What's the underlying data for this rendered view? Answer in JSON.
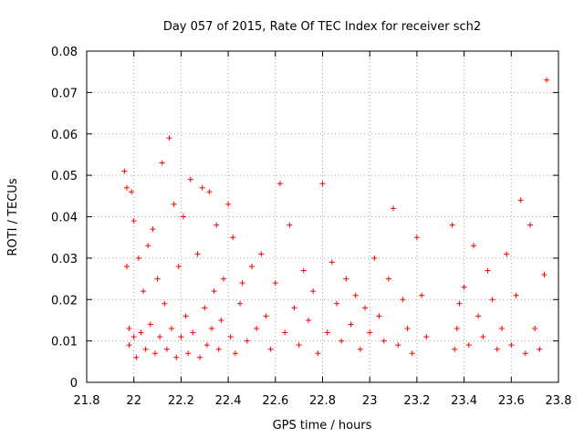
{
  "chart_data": {
    "type": "scatter",
    "title": "Day 057 of 2015, Rate Of TEC Index for receiver sch2",
    "xlabel": "GPS time / hours",
    "ylabel": "ROTI / TECUs",
    "xlim": [
      21.8,
      23.8
    ],
    "ylim": [
      0,
      0.08
    ],
    "xticks": [
      21.8,
      22,
      22.2,
      22.4,
      22.6,
      22.8,
      23,
      23.2,
      23.4,
      23.6,
      23.8
    ],
    "xtick_labels": [
      "21.8",
      "22",
      "22.2",
      "22.4",
      "22.6",
      "22.8",
      "23",
      "23.2",
      "23.4",
      "23.6",
      "23.8"
    ],
    "yticks": [
      0,
      0.01,
      0.02,
      0.03,
      0.04,
      0.05,
      0.06,
      0.07,
      0.08
    ],
    "ytick_labels": [
      "0",
      "0.01",
      "0.02",
      "0.03",
      "0.04",
      "0.05",
      "0.06",
      "0.07",
      "0.08"
    ],
    "grid": true,
    "marker": "+",
    "series": [
      {
        "name": "ROTI",
        "color": "#ff0000",
        "x": [
          21.96,
          21.97,
          21.97,
          21.98,
          21.98,
          21.99,
          22.0,
          22.0,
          22.01,
          22.02,
          22.03,
          22.04,
          22.05,
          22.06,
          22.07,
          22.08,
          22.09,
          22.1,
          22.11,
          22.12,
          22.13,
          22.14,
          22.15,
          22.16,
          22.17,
          22.18,
          22.19,
          22.2,
          22.21,
          22.22,
          22.23,
          22.24,
          22.25,
          22.27,
          22.28,
          22.29,
          22.3,
          22.31,
          22.32,
          22.33,
          22.34,
          22.35,
          22.36,
          22.37,
          22.38,
          22.4,
          22.41,
          22.42,
          22.43,
          22.45,
          22.46,
          22.48,
          22.5,
          22.52,
          22.54,
          22.56,
          22.58,
          22.6,
          22.62,
          22.64,
          22.66,
          22.68,
          22.7,
          22.72,
          22.74,
          22.76,
          22.78,
          22.8,
          22.82,
          22.84,
          22.86,
          22.88,
          22.9,
          22.92,
          22.94,
          22.96,
          22.98,
          23.0,
          23.02,
          23.04,
          23.06,
          23.08,
          23.1,
          23.12,
          23.14,
          23.16,
          23.18,
          23.2,
          23.22,
          23.24,
          23.35,
          23.36,
          23.37,
          23.38,
          23.4,
          23.42,
          23.44,
          23.46,
          23.48,
          23.5,
          23.52,
          23.54,
          23.56,
          23.58,
          23.6,
          23.62,
          23.64,
          23.66,
          23.68,
          23.7,
          23.72,
          23.74,
          23.75
        ],
        "y": [
          0.051,
          0.047,
          0.028,
          0.013,
          0.009,
          0.046,
          0.011,
          0.039,
          0.006,
          0.03,
          0.012,
          0.022,
          0.008,
          0.033,
          0.014,
          0.037,
          0.007,
          0.025,
          0.011,
          0.053,
          0.019,
          0.008,
          0.059,
          0.013,
          0.043,
          0.006,
          0.028,
          0.011,
          0.04,
          0.016,
          0.007,
          0.049,
          0.012,
          0.031,
          0.006,
          0.047,
          0.018,
          0.009,
          0.046,
          0.013,
          0.022,
          0.038,
          0.008,
          0.015,
          0.025,
          0.043,
          0.011,
          0.035,
          0.007,
          0.019,
          0.024,
          0.01,
          0.028,
          0.013,
          0.031,
          0.016,
          0.008,
          0.024,
          0.048,
          0.012,
          0.038,
          0.018,
          0.009,
          0.027,
          0.015,
          0.022,
          0.007,
          0.048,
          0.012,
          0.029,
          0.019,
          0.01,
          0.025,
          0.014,
          0.021,
          0.008,
          0.018,
          0.012,
          0.03,
          0.016,
          0.01,
          0.025,
          0.042,
          0.009,
          0.02,
          0.013,
          0.007,
          0.035,
          0.021,
          0.011,
          0.038,
          0.008,
          0.013,
          0.019,
          0.023,
          0.009,
          0.033,
          0.016,
          0.011,
          0.027,
          0.02,
          0.008,
          0.013,
          0.031,
          0.009,
          0.021,
          0.044,
          0.007,
          0.038,
          0.013,
          0.008,
          0.026,
          0.073
        ]
      }
    ]
  }
}
